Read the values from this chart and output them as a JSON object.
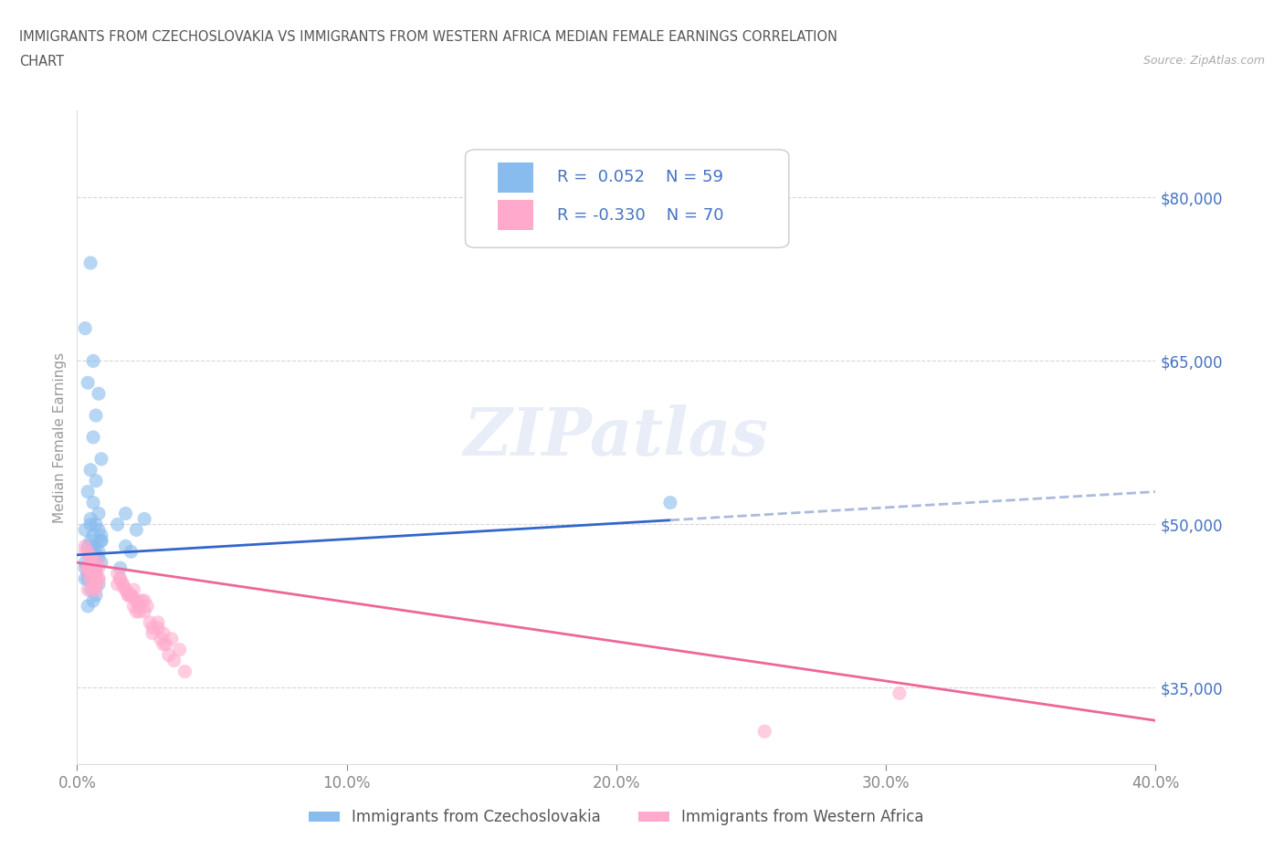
{
  "title_line1": "IMMIGRANTS FROM CZECHOSLOVAKIA VS IMMIGRANTS FROM WESTERN AFRICA MEDIAN FEMALE EARNINGS CORRELATION",
  "title_line2": "CHART",
  "source": "Source: ZipAtlas.com",
  "series1_label": "Immigrants from Czechoslovakia",
  "series2_label": "Immigrants from Western Africa",
  "series1_R": "0.052",
  "series1_N": "59",
  "series2_R": "-0.330",
  "series2_N": "70",
  "series1_color": "#88bbee",
  "series2_color": "#ffaacc",
  "series1_line_color": "#3366cc",
  "series2_line_color": "#ee6699",
  "xlim": [
    0.0,
    0.4
  ],
  "ylim": [
    28000,
    88000
  ],
  "yticks": [
    35000,
    50000,
    65000,
    80000
  ],
  "ytick_labels": [
    "$35,000",
    "$50,000",
    "$65,000",
    "$80,000"
  ],
  "xticks": [
    0.0,
    0.1,
    0.2,
    0.3,
    0.4
  ],
  "xtick_labels": [
    "0.0%",
    "10.0%",
    "20.0%",
    "30.0%",
    "40.0%"
  ],
  "ylabel": "Median Female Earnings",
  "watermark": "ZIPatlas",
  "background_color": "#ffffff",
  "grid_color": "#cccccc",
  "title_color": "#666666",
  "tick_label_color": "#4472c4",
  "legend_R_color": "#4472c4",
  "series1_scatter_x": [
    0.005,
    0.003,
    0.007,
    0.006,
    0.004,
    0.008,
    0.006,
    0.009,
    0.005,
    0.007,
    0.004,
    0.006,
    0.008,
    0.005,
    0.007,
    0.003,
    0.006,
    0.009,
    0.004,
    0.008,
    0.005,
    0.007,
    0.003,
    0.006,
    0.004,
    0.008,
    0.005,
    0.007,
    0.006,
    0.004,
    0.009,
    0.005,
    0.003,
    0.007,
    0.006,
    0.004,
    0.008,
    0.005,
    0.007,
    0.006,
    0.003,
    0.009,
    0.004,
    0.006,
    0.008,
    0.005,
    0.007,
    0.004,
    0.006,
    0.009,
    0.018,
    0.022,
    0.015,
    0.025,
    0.02,
    0.016,
    0.005,
    0.018,
    0.22
  ],
  "series1_scatter_y": [
    47000,
    68000,
    60000,
    65000,
    63000,
    62000,
    58000,
    56000,
    55000,
    54000,
    53000,
    52000,
    51000,
    50500,
    50000,
    49500,
    49000,
    48500,
    48000,
    47500,
    47000,
    46500,
    46000,
    45500,
    45000,
    44500,
    44000,
    43500,
    43000,
    42500,
    48500,
    50000,
    46500,
    47000,
    48000,
    46000,
    49500,
    47500,
    48000,
    46500,
    45000,
    49000,
    46000,
    47500,
    47000,
    48500,
    46000,
    45500,
    47000,
    46500,
    48000,
    49500,
    50000,
    50500,
    47500,
    46000,
    74000,
    51000,
    52000
  ],
  "series2_scatter_x": [
    0.004,
    0.006,
    0.005,
    0.007,
    0.003,
    0.008,
    0.005,
    0.006,
    0.004,
    0.007,
    0.005,
    0.008,
    0.006,
    0.004,
    0.007,
    0.005,
    0.006,
    0.008,
    0.004,
    0.007,
    0.005,
    0.006,
    0.004,
    0.007,
    0.008,
    0.005,
    0.006,
    0.003,
    0.007,
    0.004,
    0.015,
    0.018,
    0.02,
    0.016,
    0.022,
    0.017,
    0.019,
    0.021,
    0.023,
    0.016,
    0.025,
    0.018,
    0.02,
    0.022,
    0.017,
    0.024,
    0.019,
    0.021,
    0.015,
    0.023,
    0.03,
    0.025,
    0.028,
    0.032,
    0.035,
    0.026,
    0.038,
    0.03,
    0.033,
    0.022,
    0.027,
    0.031,
    0.034,
    0.036,
    0.02,
    0.028,
    0.032,
    0.305,
    0.04,
    0.255
  ],
  "series2_scatter_y": [
    46000,
    45500,
    47000,
    44500,
    48000,
    46500,
    45000,
    46000,
    47500,
    45500,
    46000,
    45000,
    46500,
    44000,
    45500,
    47000,
    44500,
    46000,
    45500,
    44000,
    47000,
    45500,
    46000,
    44500,
    45000,
    46500,
    44000,
    47500,
    45000,
    46000,
    45500,
    44000,
    43500,
    45000,
    43000,
    44500,
    43500,
    44000,
    42500,
    45000,
    43000,
    44000,
    43500,
    42000,
    44500,
    43000,
    43500,
    42500,
    44500,
    42000,
    41000,
    42000,
    40500,
    40000,
    39500,
    42500,
    38500,
    40500,
    39000,
    43000,
    41000,
    39500,
    38000,
    37500,
    43500,
    40000,
    39000,
    34500,
    36500,
    31000
  ],
  "trend1_x0": 0.0,
  "trend1_y0": 47200,
  "trend1_x1": 0.4,
  "trend1_y1": 53000,
  "trend2_x0": 0.0,
  "trend2_y0": 46500,
  "trend2_x1": 0.4,
  "trend2_y1": 32000
}
